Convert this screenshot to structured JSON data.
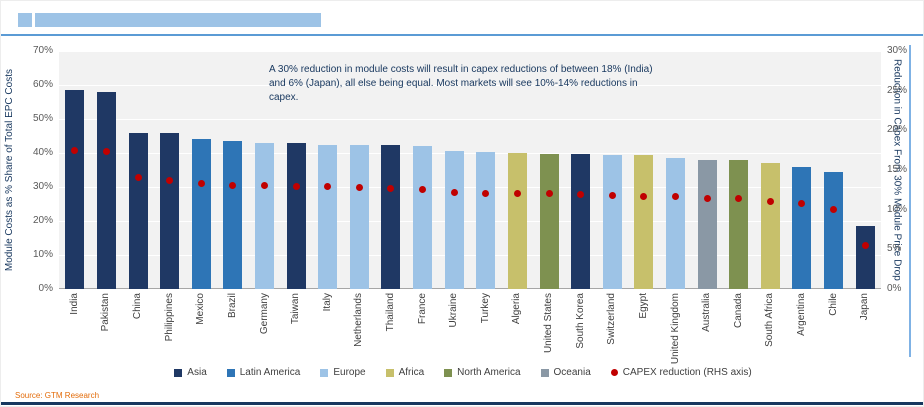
{
  "chart_data": {
    "type": "bar",
    "title": "",
    "categories": [
      "India",
      "Pakistan",
      "China",
      "Philippines",
      "Mexico",
      "Brazil",
      "Germany",
      "Taiwan",
      "Italy",
      "Netherlands",
      "Thailand",
      "France",
      "Ukraine",
      "Turkey",
      "Algeria",
      "United States",
      "South Korea",
      "Switzerland",
      "Egypt",
      "United Kingdom",
      "Australia",
      "Canada",
      "South Africa",
      "Argentina",
      "Chile",
      "Japan"
    ],
    "regions": [
      "Asia",
      "Asia",
      "Asia",
      "Asia",
      "Latin America",
      "Latin America",
      "Europe",
      "Asia",
      "Europe",
      "Europe",
      "Asia",
      "Europe",
      "Europe",
      "Europe",
      "Africa",
      "North America",
      "Asia",
      "Europe",
      "Africa",
      "Europe",
      "Oceania",
      "North America",
      "Africa",
      "Latin America",
      "Latin America",
      "Asia"
    ],
    "region_colors": {
      "Asia": "#1f3864",
      "Latin America": "#2e75b6",
      "Europe": "#9dc3e6",
      "Africa": "#c7c06b",
      "North America": "#7e9150",
      "Oceania": "#8a98a5"
    },
    "series": [
      {
        "name": "Module Costs as % Share of Total EPC Costs",
        "type": "bar",
        "axis": "left",
        "values": [
          58.5,
          58,
          46,
          46,
          44,
          43.5,
          43,
          43,
          42.5,
          42.5,
          42.5,
          42,
          40.5,
          40.3,
          40,
          39.8,
          39.8,
          39.5,
          39.3,
          38.5,
          38,
          38,
          37,
          36,
          34.5,
          18.5
        ]
      },
      {
        "name": "CAPEX reduction (RHS axis)",
        "type": "scatter",
        "axis": "right",
        "color": "#c00000",
        "values": [
          17.5,
          17.3,
          14,
          13.7,
          13.3,
          13,
          13,
          12.9,
          12.9,
          12.8,
          12.7,
          12.6,
          12.2,
          12.1,
          12,
          12,
          11.9,
          11.8,
          11.7,
          11.6,
          11.4,
          11.4,
          11,
          10.8,
          10,
          5.5
        ]
      }
    ],
    "left_axis": {
      "label": "Module Costs as % Share of Total EPC Costs",
      "max": 70,
      "ticks": [
        "0%",
        "10%",
        "20%",
        "30%",
        "40%",
        "50%",
        "60%",
        "70%"
      ]
    },
    "right_axis": {
      "label": "Reduction in Capex From 30% Module Price Drop",
      "max": 30,
      "ticks": [
        "0%",
        "5%",
        "10%",
        "15%",
        "20%",
        "25%",
        "30%"
      ]
    },
    "annotation": "A 30% reduction in module costs will result in capex reductions of between 18% (India) and 6% (Japan), all else being equal. Most markets will see 10%-14% reductions in capex.",
    "legend": [
      {
        "label": "Asia",
        "color": "#1f3864",
        "shape": "square"
      },
      {
        "label": "Latin America",
        "color": "#2e75b6",
        "shape": "square"
      },
      {
        "label": "Europe",
        "color": "#9dc3e6",
        "shape": "square"
      },
      {
        "label": "Africa",
        "color": "#c7c06b",
        "shape": "square"
      },
      {
        "label": "North America",
        "color": "#7e9150",
        "shape": "square"
      },
      {
        "label": "Oceania",
        "color": "#8a98a5",
        "shape": "square"
      },
      {
        "label": "CAPEX reduction (RHS axis)",
        "color": "#c00000",
        "shape": "circle"
      }
    ],
    "source": "Source: GTM Research"
  }
}
